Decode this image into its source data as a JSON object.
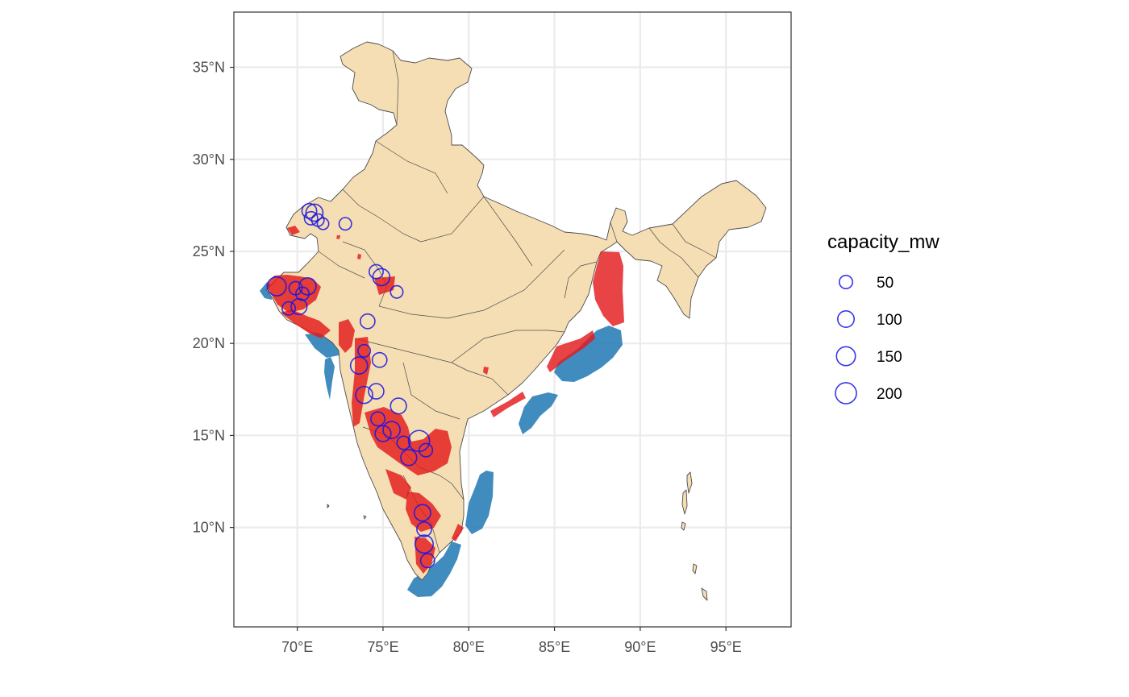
{
  "map": {
    "x_axis": {
      "ticks": [
        {
          "value": 70,
          "label": "70°E"
        },
        {
          "value": 75,
          "label": "75°E"
        },
        {
          "value": 80,
          "label": "80°E"
        },
        {
          "value": 85,
          "label": "85°E"
        },
        {
          "value": 90,
          "label": "90°E"
        },
        {
          "value": 95,
          "label": "95°E"
        }
      ],
      "range": [
        66.3,
        98.8
      ]
    },
    "y_axis": {
      "ticks": [
        {
          "value": 10,
          "label": "10°N"
        },
        {
          "value": 15,
          "label": "15°N"
        },
        {
          "value": 20,
          "label": "20°N"
        },
        {
          "value": 25,
          "label": "25°N"
        },
        {
          "value": 30,
          "label": "30°N"
        },
        {
          "value": 35,
          "label": "35°N"
        }
      ],
      "range": [
        4.6,
        38.0
      ]
    },
    "grid": true,
    "colors": {
      "land": "#f5deb3",
      "border": "#4d4d4d",
      "onshore_wind": "#e31a1c",
      "offshore_wind": "#2c7fb8",
      "plant_circle": "#1414e6",
      "gridline": "#ebebeb",
      "panel_border": "#333333"
    },
    "legend": {
      "title": "capacity_mw",
      "position": "right",
      "entries": [
        {
          "label": "50",
          "value": 50
        },
        {
          "label": "100",
          "value": 100
        },
        {
          "label": "150",
          "value": 150
        },
        {
          "label": "200",
          "value": 200
        }
      ]
    },
    "plants": [
      {
        "lon": 70.7,
        "lat": 27.2,
        "mw": 70
      },
      {
        "lon": 71.0,
        "lat": 27.1,
        "mw": 110
      },
      {
        "lon": 70.8,
        "lat": 26.8,
        "mw": 50
      },
      {
        "lon": 71.2,
        "lat": 26.7,
        "mw": 40
      },
      {
        "lon": 71.5,
        "lat": 26.5,
        "mw": 30
      },
      {
        "lon": 72.8,
        "lat": 26.5,
        "mw": 40
      },
      {
        "lon": 68.8,
        "lat": 23.1,
        "mw": 150
      },
      {
        "lon": 69.9,
        "lat": 23.0,
        "mw": 50
      },
      {
        "lon": 70.6,
        "lat": 23.1,
        "mw": 110
      },
      {
        "lon": 70.3,
        "lat": 22.7,
        "mw": 50
      },
      {
        "lon": 69.5,
        "lat": 21.9,
        "mw": 50
      },
      {
        "lon": 70.1,
        "lat": 22.0,
        "mw": 90
      },
      {
        "lon": 74.6,
        "lat": 23.9,
        "mw": 60
      },
      {
        "lon": 74.9,
        "lat": 23.6,
        "mw": 110
      },
      {
        "lon": 75.8,
        "lat": 22.8,
        "mw": 40
      },
      {
        "lon": 74.1,
        "lat": 21.2,
        "mw": 70
      },
      {
        "lon": 73.9,
        "lat": 19.6,
        "mw": 40
      },
      {
        "lon": 73.6,
        "lat": 18.8,
        "mw": 110
      },
      {
        "lon": 74.8,
        "lat": 19.1,
        "mw": 70
      },
      {
        "lon": 73.9,
        "lat": 17.2,
        "mw": 110
      },
      {
        "lon": 74.6,
        "lat": 17.4,
        "mw": 80
      },
      {
        "lon": 75.9,
        "lat": 16.6,
        "mw": 90
      },
      {
        "lon": 74.7,
        "lat": 15.9,
        "mw": 60
      },
      {
        "lon": 75.5,
        "lat": 15.3,
        "mw": 110
      },
      {
        "lon": 75.0,
        "lat": 15.1,
        "mw": 90
      },
      {
        "lon": 76.2,
        "lat": 14.6,
        "mw": 50
      },
      {
        "lon": 77.1,
        "lat": 14.7,
        "mw": 200
      },
      {
        "lon": 76.5,
        "lat": 13.8,
        "mw": 90
      },
      {
        "lon": 77.5,
        "lat": 14.2,
        "mw": 50
      },
      {
        "lon": 77.3,
        "lat": 10.8,
        "mw": 100
      },
      {
        "lon": 77.4,
        "lat": 9.9,
        "mw": 70
      },
      {
        "lon": 77.4,
        "lat": 9.1,
        "mw": 130
      },
      {
        "lon": 77.6,
        "lat": 8.2,
        "mw": 60
      }
    ]
  }
}
